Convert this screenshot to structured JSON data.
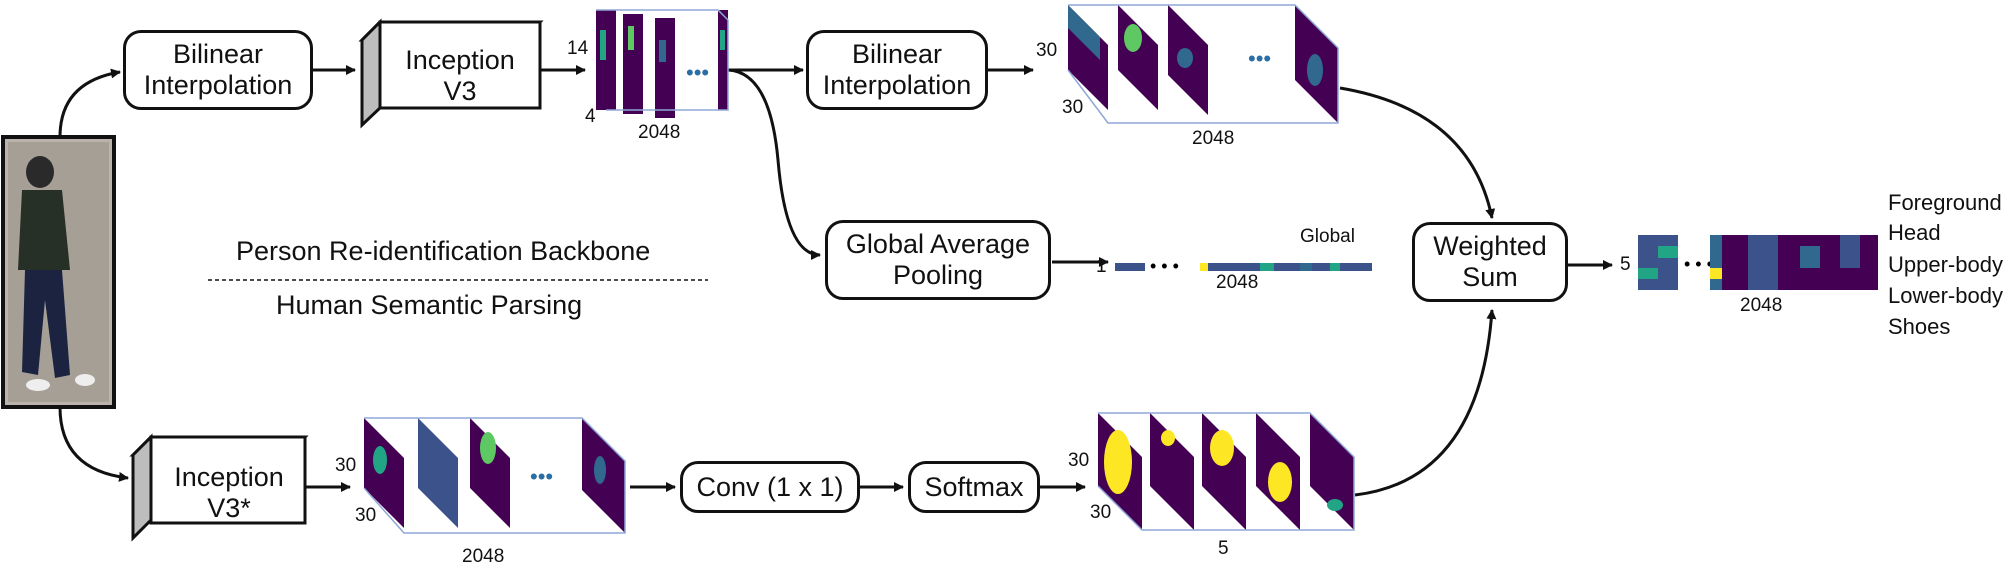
{
  "backbone_label": "Person Re-identification Backbone",
  "parsing_label": "Human Semantic Parsing",
  "nodes": {
    "bilinear1": "Bilinear Interpolation",
    "inception_v3": "Inception V3",
    "bilinear2": "Bilinear Interpolation",
    "gap": "Global Average Pooling",
    "weighted_sum": "Weighted Sum",
    "inception_v3_star": "Inception V3*",
    "conv": "Conv (1 x 1)",
    "softmax": "Softmax"
  },
  "dims": {
    "fm1_h": "14",
    "fm1_w": "4",
    "fm1_c": "2048",
    "fm2_h": "30",
    "fm2_w": "30",
    "fm2_c": "2048",
    "global_rows": "1",
    "global_c": "2048",
    "global_label": "Global",
    "fm3_h": "30",
    "fm3_w": "30",
    "fm3_c": "2048",
    "fm4_h": "30",
    "fm4_w": "30",
    "fm4_c": "5",
    "out_rows": "5",
    "out_c": "2048"
  },
  "ellipsis": "• • •",
  "parts": [
    "Foreground",
    "Head",
    "Upper-body",
    "Lower-body",
    "Shoes"
  ],
  "colors": {
    "viridis_dark": "#440154",
    "viridis_blue": "#31688e",
    "viridis_teal": "#21a585",
    "viridis_yellow": "#fde725",
    "frame": "#8fa7d6"
  }
}
